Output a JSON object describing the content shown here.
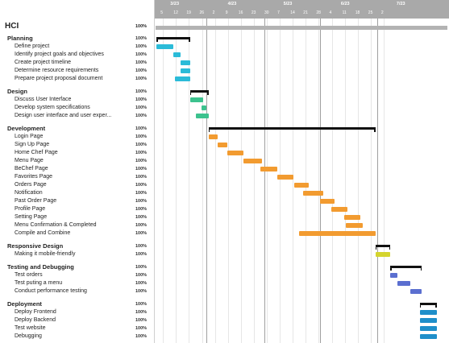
{
  "project": {
    "title": "HCI",
    "percent": "100%"
  },
  "timeline": {
    "months": [
      {
        "label": "3/23",
        "day": 11
      },
      {
        "label": "4/23",
        "day": 42
      },
      {
        "label": "5/23",
        "day": 72
      },
      {
        "label": "6/23",
        "day": 103
      },
      {
        "label": "7/23",
        "day": 133
      }
    ],
    "day_ticks": [
      {
        "label": "5",
        "day": 4
      },
      {
        "label": "12",
        "day": 11
      },
      {
        "label": "19",
        "day": 18
      },
      {
        "label": "26",
        "day": 25
      },
      {
        "label": "2",
        "day": 32
      },
      {
        "label": "9",
        "day": 39
      },
      {
        "label": "16",
        "day": 46
      },
      {
        "label": "23",
        "day": 53
      },
      {
        "label": "30",
        "day": 60
      },
      {
        "label": "7",
        "day": 67
      },
      {
        "label": "14",
        "day": 74
      },
      {
        "label": "21",
        "day": 81
      },
      {
        "label": "28",
        "day": 88
      },
      {
        "label": "4",
        "day": 95
      },
      {
        "label": "11",
        "day": 102
      },
      {
        "label": "18",
        "day": 109
      },
      {
        "label": "25",
        "day": 116
      },
      {
        "label": "2",
        "day": 123
      }
    ],
    "month_starts": [
      28,
      59,
      89,
      120
    ]
  },
  "groups": [
    {
      "name": "Planning",
      "percent": "100%",
      "tasks": [
        {
          "name": "Define project",
          "percent": "100%",
          "start": 1,
          "end": 10,
          "color": "#2bbbd8"
        },
        {
          "name": "Identify project goals and objectives",
          "percent": "100%",
          "start": 10,
          "end": 14,
          "color": "#2bbbd8"
        },
        {
          "name": "Create project timeline",
          "percent": "100%",
          "start": 14,
          "end": 19,
          "color": "#2bbbd8"
        },
        {
          "name": "Determine resource requirements",
          "percent": "100%",
          "start": 14,
          "end": 19,
          "color": "#2bbbd8"
        },
        {
          "name": "Prepare project proposal document",
          "percent": "100%",
          "start": 11,
          "end": 19,
          "color": "#2bbbd8"
        }
      ]
    },
    {
      "name": "Design",
      "percent": "100%",
      "tasks": [
        {
          "name": "Discuss User Interface",
          "percent": "100%",
          "start": 19,
          "end": 26,
          "color": "#3cc28e"
        },
        {
          "name": "Develop system specifications",
          "percent": "100%",
          "start": 25,
          "end": 28,
          "color": "#3cc28e"
        },
        {
          "name": "Design user interface and user exper...",
          "percent": "100%",
          "start": 22,
          "end": 29,
          "color": "#3cc28e"
        }
      ]
    },
    {
      "name": "Development",
      "percent": "100%",
      "tasks": [
        {
          "name": "Login Page",
          "percent": "100%",
          "start": 29,
          "end": 34,
          "color": "#f29b30"
        },
        {
          "name": "Sign Up Page",
          "percent": "100%",
          "start": 34,
          "end": 39,
          "color": "#f29b30"
        },
        {
          "name": "Home Chef Page",
          "percent": "100%",
          "start": 39,
          "end": 48,
          "color": "#f29b30"
        },
        {
          "name": "Menu Page",
          "percent": "100%",
          "start": 48,
          "end": 58,
          "color": "#f29b30"
        },
        {
          "name": "BeChef Page",
          "percent": "100%",
          "start": 57,
          "end": 66,
          "color": "#f29b30"
        },
        {
          "name": "Favorites Page",
          "percent": "100%",
          "start": 66,
          "end": 75,
          "color": "#f29b30"
        },
        {
          "name": "Orders Page",
          "percent": "100%",
          "start": 75,
          "end": 83,
          "color": "#f29b30"
        },
        {
          "name": "Notification",
          "percent": "100%",
          "start": 80,
          "end": 91,
          "color": "#f29b30"
        },
        {
          "name": "Past Order Page",
          "percent": "100%",
          "start": 89,
          "end": 97,
          "color": "#f29b30"
        },
        {
          "name": "Profile Page",
          "percent": "100%",
          "start": 95,
          "end": 104,
          "color": "#f29b30"
        },
        {
          "name": "Setting Page",
          "percent": "100%",
          "start": 102,
          "end": 111,
          "color": "#f29b30"
        },
        {
          "name": "Menu Confirmation & Completed",
          "percent": "100%",
          "start": 103,
          "end": 112,
          "color": "#f29b30"
        },
        {
          "name": "Compile and Combine",
          "percent": "100%",
          "start": 78,
          "end": 119,
          "color": "#f29b30"
        }
      ]
    },
    {
      "name": "Responsive Design",
      "percent": "100%",
      "tasks": [
        {
          "name": "Making it mobile-friendly",
          "percent": "100%",
          "start": 119,
          "end": 127,
          "color": "#d4d42e"
        }
      ]
    },
    {
      "name": "Testing and Debugging",
      "percent": "100%",
      "tasks": [
        {
          "name": "Test orders",
          "percent": "100%",
          "start": 127,
          "end": 131,
          "color": "#5b6fd0"
        },
        {
          "name": "Test puting a menu",
          "percent": "100%",
          "start": 131,
          "end": 138,
          "color": "#5b6fd0"
        },
        {
          "name": "Conduct performance testing",
          "percent": "100%",
          "start": 138,
          "end": 144,
          "color": "#5b6fd0"
        }
      ]
    },
    {
      "name": "Deployment",
      "percent": "100%",
      "tasks": [
        {
          "name": "Deploy Frontend",
          "percent": "100%",
          "start": 143,
          "end": 152,
          "color": "#1f8fca"
        },
        {
          "name": "Deploy Backend",
          "percent": "100%",
          "start": 143,
          "end": 152,
          "color": "#1f8fca"
        },
        {
          "name": "Test website",
          "percent": "100%",
          "start": 143,
          "end": 152,
          "color": "#1f8fca"
        },
        {
          "name": "Debugging",
          "percent": "100%",
          "start": 143,
          "end": 152,
          "color": "#1f8fca"
        }
      ]
    }
  ]
}
